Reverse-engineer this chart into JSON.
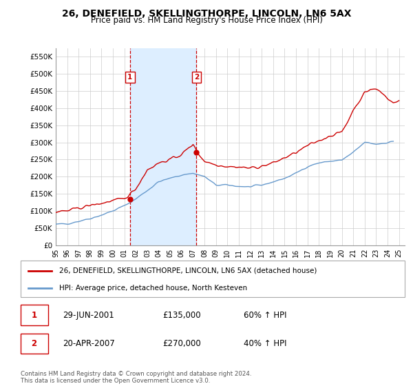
{
  "title": "26, DENEFIELD, SKELLINGTHORPE, LINCOLN, LN6 5AX",
  "subtitle": "Price paid vs. HM Land Registry's House Price Index (HPI)",
  "ylabel_ticks": [
    "£0",
    "£50K",
    "£100K",
    "£150K",
    "£200K",
    "£250K",
    "£300K",
    "£350K",
    "£400K",
    "£450K",
    "£500K",
    "£550K"
  ],
  "ytick_values": [
    0,
    50000,
    100000,
    150000,
    200000,
    250000,
    300000,
    350000,
    400000,
    450000,
    500000,
    550000
  ],
  "ylim": [
    0,
    575000
  ],
  "xlim_start": 1995.0,
  "xlim_end": 2025.5,
  "transaction1": {
    "date_num": 2001.49,
    "price": 135000,
    "label": "1",
    "pct": "60% ↑ HPI",
    "date_str": "29-JUN-2001",
    "price_str": "£135,000"
  },
  "transaction2": {
    "date_num": 2007.3,
    "price": 270000,
    "label": "2",
    "pct": "40% ↑ HPI",
    "date_str": "20-APR-2007",
    "price_str": "£270,000"
  },
  "red_line_color": "#cc0000",
  "blue_line_color": "#6699cc",
  "shade_color": "#ddeeff",
  "vline_color": "#cc0000",
  "marker_color": "#cc0000",
  "legend_label_red": "26, DENEFIELD, SKELLINGTHORPE, LINCOLN, LN6 5AX (detached house)",
  "legend_label_blue": "HPI: Average price, detached house, North Kesteven",
  "footer": "Contains HM Land Registry data © Crown copyright and database right 2024.\nThis data is licensed under the Open Government Licence v3.0.",
  "xtick_years": [
    1995,
    1996,
    1997,
    1998,
    1999,
    2000,
    2001,
    2002,
    2003,
    2004,
    2005,
    2006,
    2007,
    2008,
    2009,
    2010,
    2011,
    2012,
    2013,
    2014,
    2015,
    2016,
    2017,
    2018,
    2019,
    2020,
    2021,
    2022,
    2023,
    2024,
    2025
  ]
}
